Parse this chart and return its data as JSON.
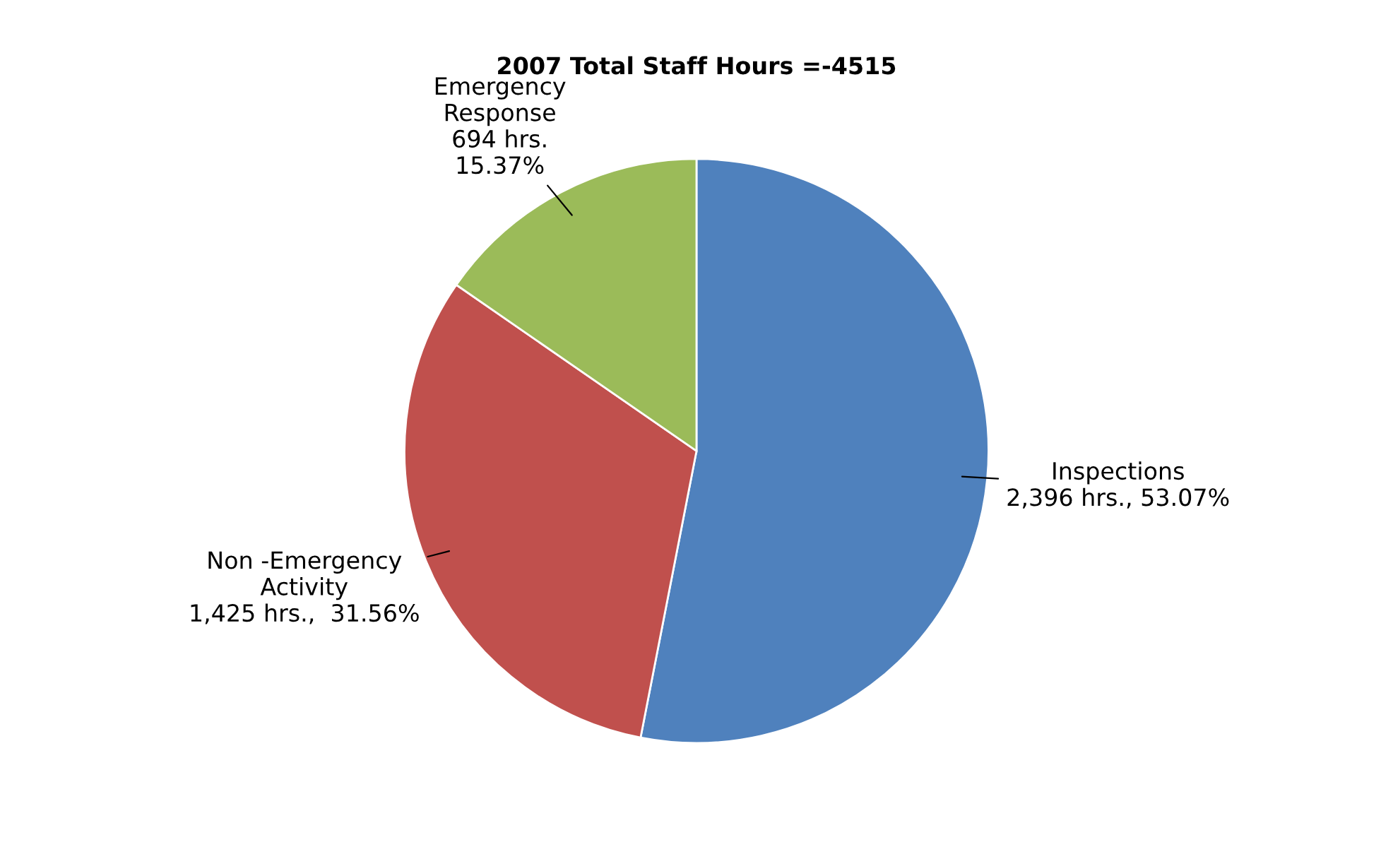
{
  "chart_data": {
    "type": "pie",
    "title": "2007 Total Staff Hours =-4515",
    "categories": [
      "Inspections",
      "Non -Emergency\nActivity",
      "Emergency\nResponse"
    ],
    "values": [
      2396,
      1425,
      694
    ],
    "colors": [
      "#4f81bd",
      "#c0504d",
      "#9bbb59"
    ],
    "value_labels": [
      "2,396 hrs., 53.07%",
      "1,425 hrs.,  31.56%",
      "694 hrs.\n15.37%"
    ],
    "legend": false
  }
}
